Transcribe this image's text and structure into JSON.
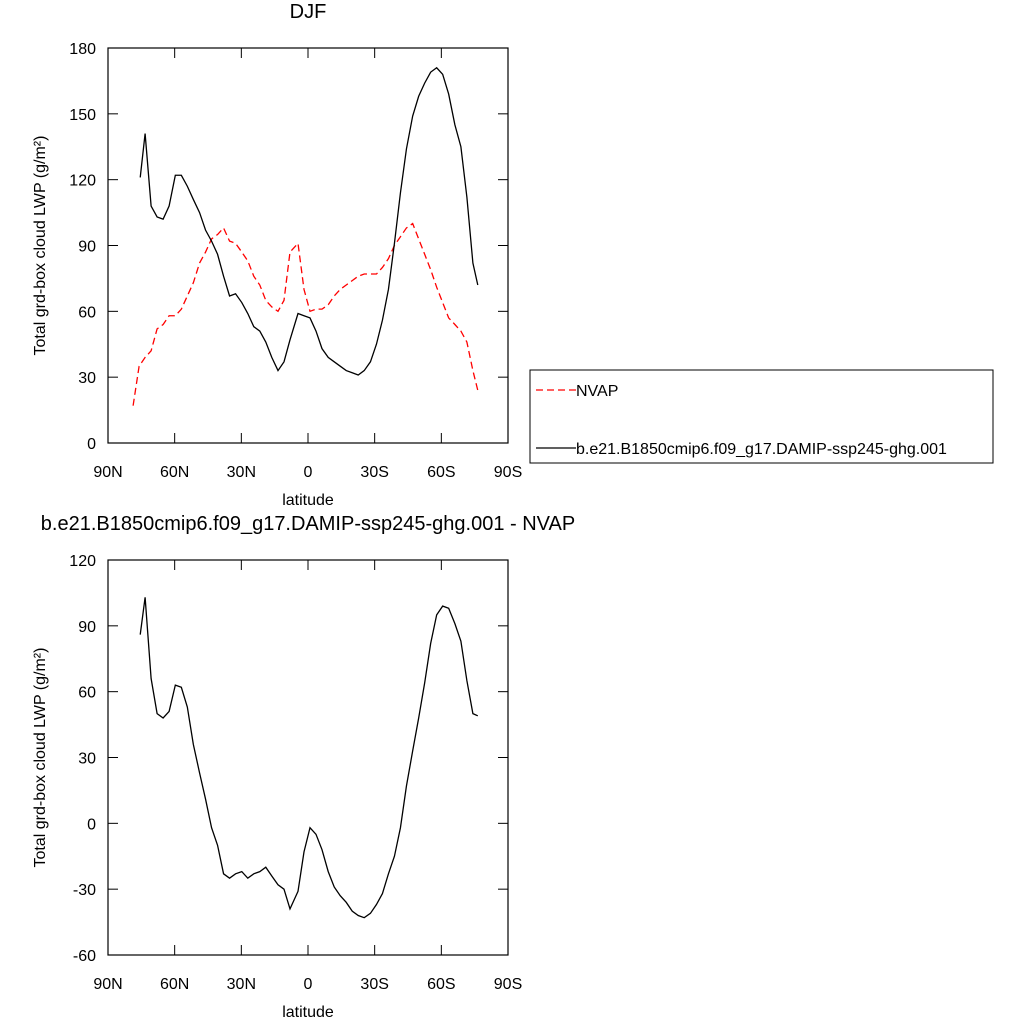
{
  "chart_data": [
    {
      "type": "line",
      "title": "DJF",
      "x_label": "latitude",
      "y_label": "Total grd-box cloud LWP (g/m²)",
      "xlim": [
        90,
        -90
      ],
      "xticks": [
        {
          "value": 90,
          "label": "90N"
        },
        {
          "value": 60,
          "label": "60N"
        },
        {
          "value": 30,
          "label": "30N"
        },
        0,
        {
          "value": -30,
          "label": "30S"
        },
        {
          "value": -60,
          "label": "60S"
        },
        {
          "value": -90,
          "label": "90S"
        }
      ],
      "ylim": [
        0,
        180
      ],
      "yticks": [
        0,
        30,
        60,
        90,
        120,
        150,
        180
      ],
      "legend": "right",
      "series": [
        {
          "name": "NVAP",
          "color": "#ff0000",
          "linestyle": "dashed",
          "x": [
            78.7,
            76.0,
            73.3,
            70.6,
            67.9,
            65.2,
            62.5,
            59.7,
            57.0,
            54.3,
            51.6,
            48.8,
            46.1,
            43.4,
            40.7,
            38.0,
            35.3,
            32.6,
            29.8,
            27.1,
            24.4,
            21.7,
            19.0,
            16.3,
            13.5,
            10.8,
            8.1,
            4.5,
            1.8,
            -0.9,
            -3.6,
            -6.3,
            -9.1,
            -11.8,
            -14.5,
            -17.2,
            -19.9,
            -22.6,
            -25.3,
            -28.1,
            -30.8,
            -33.5,
            -36.2,
            -38.9,
            -41.6,
            -44.3,
            -47.1,
            -49.8,
            -52.5,
            -55.2,
            -57.9,
            -60.6,
            -63.3,
            -66.1,
            -68.8,
            -71.5,
            -74.2,
            -76.4
          ],
          "values": [
            17,
            35,
            39,
            42,
            52,
            54,
            58,
            58,
            61,
            67,
            73,
            82,
            87,
            93,
            95,
            98,
            92,
            91,
            87,
            83,
            76,
            72,
            65,
            62,
            60,
            65,
            87,
            91,
            70,
            60,
            61,
            61,
            63,
            67,
            70,
            72,
            74,
            76,
            77,
            77,
            77,
            80,
            84,
            90,
            94,
            98,
            100,
            93,
            86,
            79,
            71,
            64,
            57,
            54,
            51,
            46,
            33,
            24
          ]
        },
        {
          "name": "b.e21.B1850cmip6.f09_g17.DAMIP-ssp245-ghg.001",
          "color": "#000000",
          "linestyle": "solid",
          "x": [
            75.5,
            73.3,
            70.6,
            67.9,
            65.2,
            62.5,
            59.7,
            57.0,
            54.3,
            51.6,
            48.8,
            46.1,
            43.4,
            40.7,
            38.0,
            35.3,
            32.6,
            29.8,
            27.1,
            24.4,
            21.7,
            19.0,
            16.3,
            13.5,
            10.8,
            8.1,
            4.5,
            1.8,
            -0.9,
            -3.6,
            -6.3,
            -9.1,
            -11.8,
            -14.5,
            -17.2,
            -19.9,
            -22.6,
            -25.3,
            -28.1,
            -30.8,
            -33.5,
            -36.2,
            -38.9,
            -41.6,
            -44.3,
            -47.1,
            -49.8,
            -52.5,
            -55.2,
            -57.9,
            -60.6,
            -63.3,
            -66.1,
            -68.8,
            -71.5,
            -74.2,
            -76.4
          ],
          "values": [
            121,
            141,
            108,
            103,
            102,
            108,
            122,
            122,
            117,
            111,
            105,
            97,
            92,
            86,
            76,
            67,
            68,
            64,
            59,
            53,
            51,
            46,
            39,
            33,
            37,
            47,
            59,
            58,
            57,
            51,
            43,
            39,
            37,
            35,
            33,
            32,
            31,
            33,
            37,
            45,
            56,
            70,
            91,
            114,
            134,
            149,
            158,
            164,
            169,
            171,
            168,
            159,
            145,
            135,
            112,
            82,
            72
          ]
        }
      ]
    },
    {
      "type": "line",
      "title": "b.e21.B1850cmip6.f09_g17.DAMIP-ssp245-ghg.001 - NVAP",
      "x_label": "latitude",
      "y_label": "Total grd-box cloud LWP (g/m²)",
      "xlim": [
        90,
        -90
      ],
      "xticks": [
        {
          "value": 90,
          "label": "90N"
        },
        {
          "value": 60,
          "label": "60N"
        },
        {
          "value": 30,
          "label": "30N"
        },
        0,
        {
          "value": -30,
          "label": "30S"
        },
        {
          "value": -60,
          "label": "60S"
        },
        {
          "value": -90,
          "label": "90S"
        }
      ],
      "ylim": [
        -60,
        120
      ],
      "yticks": [
        -60,
        -30,
        0,
        30,
        60,
        90,
        120
      ],
      "series": [
        {
          "color": "#000000",
          "linestyle": "solid",
          "x": [
            75.5,
            73.3,
            70.6,
            67.9,
            65.2,
            62.5,
            59.7,
            57.0,
            54.3,
            51.6,
            48.8,
            46.1,
            43.4,
            40.7,
            38.0,
            35.3,
            32.6,
            29.8,
            27.1,
            24.4,
            21.7,
            19.0,
            16.3,
            13.5,
            10.8,
            8.1,
            4.5,
            1.8,
            -0.9,
            -3.6,
            -6.3,
            -9.1,
            -11.8,
            -14.5,
            -17.2,
            -19.9,
            -22.6,
            -25.3,
            -28.1,
            -30.8,
            -33.5,
            -36.2,
            -38.9,
            -41.6,
            -44.3,
            -47.1,
            -49.8,
            -52.5,
            -55.2,
            -57.9,
            -60.6,
            -63.3,
            -66.1,
            -68.8,
            -71.5,
            -74.2,
            -76.4
          ],
          "values": [
            86,
            103,
            66,
            50,
            48,
            51,
            63,
            62,
            53,
            36,
            23,
            11,
            -2,
            -10,
            -23,
            -25,
            -23,
            -22,
            -25,
            -23,
            -22,
            -20,
            -24,
            -28,
            -30,
            -39,
            -31,
            -13,
            -2,
            -5,
            -12,
            -22,
            -29,
            -33,
            -36,
            -40,
            -42,
            -43,
            -41,
            -37,
            -32,
            -23,
            -15,
            -2,
            17,
            33,
            48,
            64,
            82,
            95,
            99,
            98,
            91,
            83,
            65,
            50,
            49
          ]
        }
      ]
    }
  ]
}
